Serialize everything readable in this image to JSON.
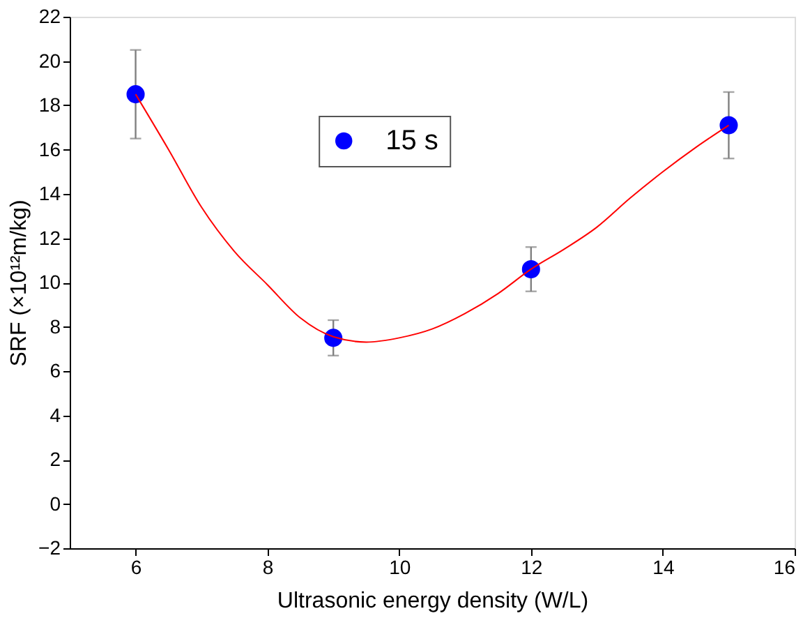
{
  "chart_data": {
    "type": "scatter",
    "xlabel": "Ultrasonic energy density (W/L)",
    "ylabel": "SRF (×10¹²m/kg)",
    "xlim": [
      5,
      16
    ],
    "xticks": [
      6,
      8,
      10,
      12,
      14,
      16
    ],
    "ylim": [
      -2,
      22
    ],
    "yticks": [
      -2,
      0,
      2,
      4,
      6,
      8,
      10,
      12,
      14,
      16,
      18,
      20,
      22
    ],
    "grid": false,
    "legend": "top",
    "marker": "circle",
    "series": [
      {
        "name": "15 s",
        "color": "#0000ff",
        "x": [
          6,
          9,
          12,
          15
        ],
        "values": [
          18.5,
          7.5,
          10.6,
          17.1
        ],
        "errors": [
          [
            16.5,
            20.5
          ],
          [
            6.7,
            8.3
          ],
          [
            9.6,
            11.6
          ],
          [
            15.6,
            18.6
          ]
        ]
      },
      {
        "type": "line",
        "marker": "none",
        "color": "#ff0000",
        "x": [
          6,
          6.5,
          7,
          7.5,
          8,
          8.5,
          9,
          9.5,
          10,
          10.5,
          11,
          11.5,
          12,
          12.5,
          13,
          13.5,
          14,
          14.5,
          15
        ],
        "values": [
          18.5,
          16.0,
          13.4,
          11.4,
          9.9,
          8.4,
          7.55,
          7.31,
          7.5,
          7.9,
          8.6,
          9.5,
          10.6,
          11.5,
          12.5,
          13.8,
          15.0,
          16.1,
          17.1
        ]
      }
    ]
  }
}
